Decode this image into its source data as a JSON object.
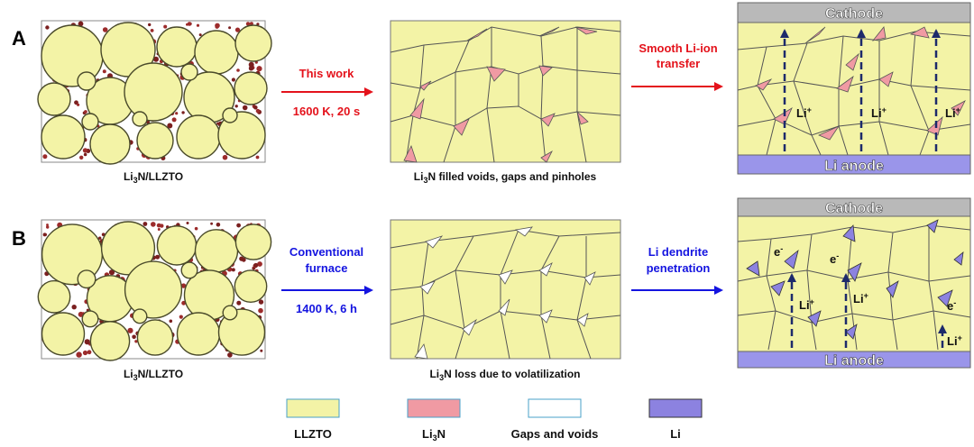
{
  "row_a": {
    "label": "A",
    "panel1_caption_pre": "Li",
    "panel1_caption_sub": "3",
    "panel1_caption_post": "N/LLZTO",
    "arrow1_line1": "This work",
    "arrow1_line2": "1600 K, 20 s",
    "panel2_caption_pre": "Li",
    "panel2_caption_sub": "3",
    "panel2_caption_post": "N filled voids, gaps and pinholes",
    "arrow2_line1": "Smooth Li-ion",
    "arrow2_line2": "transfer",
    "cathode_label": "Cathode",
    "anode_label": "Li anode",
    "ion_label": "Li",
    "ion_sup": "+"
  },
  "row_b": {
    "label": "B",
    "panel1_caption_pre": "Li",
    "panel1_caption_sub": "3",
    "panel1_caption_post": "N/LLZTO",
    "arrow1_line1": "Conventional",
    "arrow1_line2": "furnace",
    "arrow1_line3": "1400 K, 6 h",
    "panel2_caption_pre": "Li",
    "panel2_caption_sub": "3",
    "panel2_caption_post": "N loss due to volatilization",
    "arrow2_line1": "Li dendrite",
    "arrow2_line2": "penetration",
    "cathode_label": "Cathode",
    "anode_label": "Li anode",
    "ion_label": "Li",
    "ion_sup": "+",
    "electron_label": "e",
    "electron_sup": "-"
  },
  "legend": {
    "llzto": "LLZTO",
    "li3n_pre": "Li",
    "li3n_sub": "3",
    "li3n_post": "N",
    "gaps": "Gaps and voids",
    "li": "Li"
  },
  "colors": {
    "llzto": "#f3f3a6",
    "li3n": "#f09aa3",
    "gap": "#ffffff",
    "li_metal": "#8c82e0",
    "cathode": "#b9b9b9",
    "anode": "#9a95ea",
    "row_a_arrow": "#e4121b",
    "row_b_arrow": "#1414e0",
    "ion_dash": "#1d2a6b",
    "particle_dot": "#7a1f1f"
  }
}
